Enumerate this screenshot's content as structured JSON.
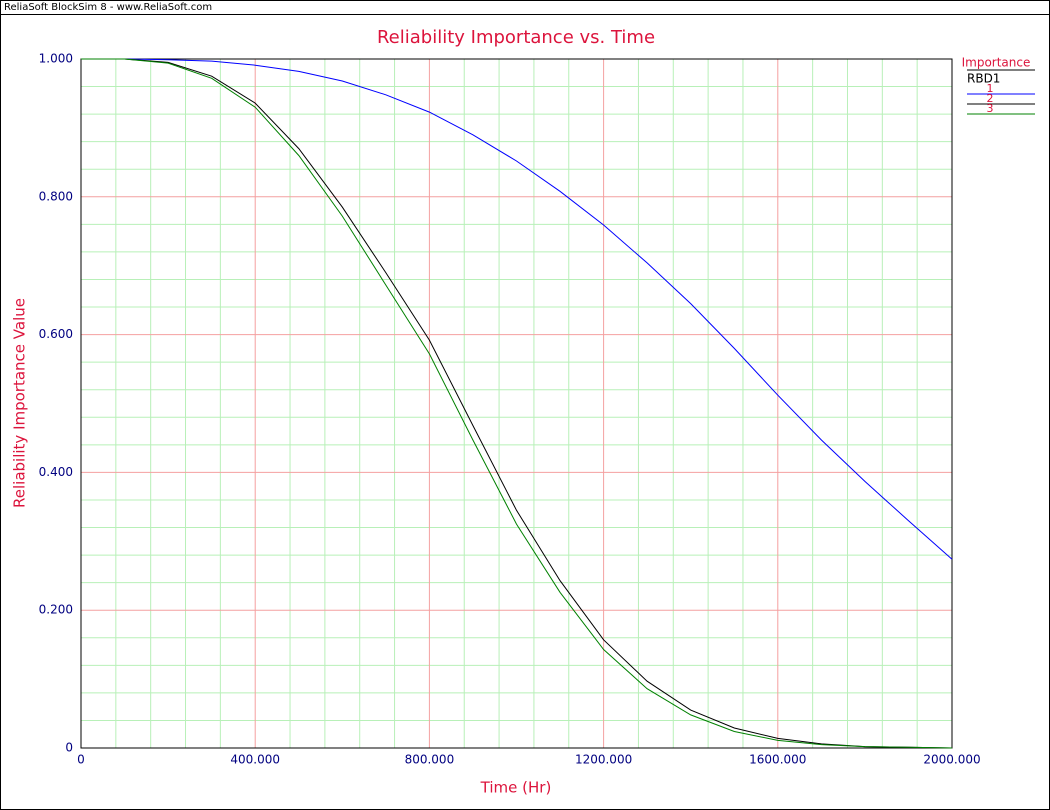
{
  "header": {
    "app_title": "ReliaSoft BlockSim 8 - www.ReliaSoft.com"
  },
  "chart_data": {
    "type": "line",
    "title": "Reliability Importance vs. Time",
    "x_label": "Time (Hr)",
    "y_label": "Reliability Importance Value",
    "legend_title": "Importance",
    "legend_group": "RBD1",
    "x": [
      0,
      100,
      200,
      300,
      400,
      500,
      600,
      700,
      800,
      900,
      1000,
      1100,
      1200,
      1300,
      1400,
      1500,
      1600,
      1700,
      1800,
      1900,
      2000
    ],
    "series": [
      {
        "name": "1",
        "color": "#0000ff",
        "values": [
          1.0,
          1.0,
          0.999,
          0.997,
          0.991,
          0.982,
          0.968,
          0.948,
          0.923,
          0.89,
          0.852,
          0.808,
          0.759,
          0.704,
          0.645,
          0.58,
          0.512,
          0.447,
          0.387,
          0.33,
          0.274
        ]
      },
      {
        "name": "2",
        "color": "#000000",
        "values": [
          1.0,
          1.0,
          0.995,
          0.975,
          0.936,
          0.87,
          0.785,
          0.69,
          0.592,
          0.468,
          0.345,
          0.243,
          0.157,
          0.097,
          0.055,
          0.029,
          0.014,
          0.006,
          0.002,
          0.001,
          0.0
        ]
      },
      {
        "name": "3",
        "color": "#008000",
        "values": [
          1.0,
          1.0,
          0.994,
          0.972,
          0.93,
          0.86,
          0.772,
          0.672,
          0.572,
          0.447,
          0.325,
          0.226,
          0.143,
          0.086,
          0.048,
          0.024,
          0.011,
          0.005,
          0.002,
          0.001,
          0.0
        ]
      }
    ],
    "xlim": [
      0,
      2000
    ],
    "ylim": [
      0,
      1
    ],
    "xticks": [
      0,
      {
        "value": 400,
        "label": "400.000"
      },
      {
        "value": 800,
        "label": "800.000"
      },
      {
        "value": 1200,
        "label": "1200.000"
      },
      {
        "value": 1600,
        "label": "1600.000"
      },
      {
        "value": 2000,
        "label": "2000.000"
      }
    ],
    "yticks": [
      0,
      {
        "value": 0.2,
        "label": "0.200"
      },
      {
        "value": 0.4,
        "label": "0.400"
      },
      {
        "value": 0.6,
        "label": "0.600"
      },
      {
        "value": 0.8,
        "label": "0.800"
      },
      {
        "value": 1,
        "label": "1.000"
      }
    ],
    "x_minor_ticks": [
      80,
      160,
      240,
      320,
      480,
      560,
      640,
      720,
      880,
      960,
      1040,
      1120,
      1280,
      1360,
      1440,
      1520,
      1680,
      1760,
      1840,
      1920
    ],
    "y_minor_ticks": [
      0.04,
      0.08,
      0.12,
      0.16,
      0.24,
      0.28,
      0.32,
      0.36,
      0.44,
      0.48,
      0.52,
      0.56,
      0.64,
      0.68,
      0.72,
      0.76,
      0.84,
      0.88,
      0.92,
      0.96
    ],
    "grid": true
  }
}
